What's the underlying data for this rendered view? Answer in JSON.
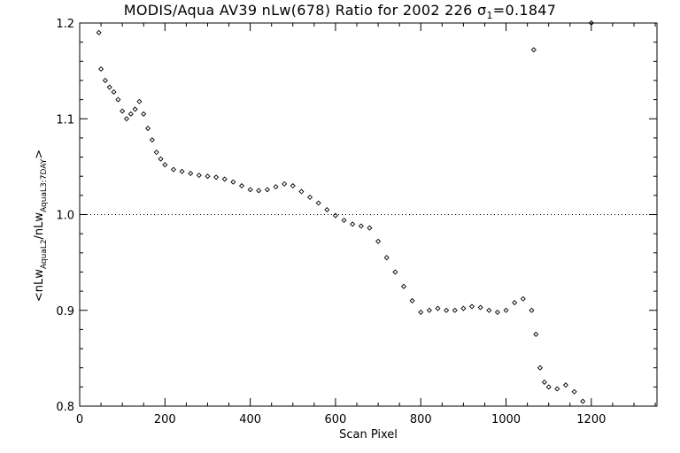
{
  "chart_data": {
    "type": "scatter",
    "title": {
      "prefix": "MODIS/Aqua AV39 nLw(678) Ratio for 2002 226 σ",
      "subscript": "1",
      "suffix": "=0.1847"
    },
    "xlabel": "Scan Pixel",
    "ylabel": {
      "prefix": "<nLw",
      "sub1": "AquaL2",
      "middle": "/nLw",
      "sub2": "AquaL3:7DAY",
      "suffix": ">"
    },
    "xlim": [
      0,
      1354
    ],
    "ylim": [
      0.8,
      1.2
    ],
    "xticks": [
      0,
      200,
      400,
      600,
      800,
      1000,
      1200
    ],
    "xtick_labels": [
      "0",
      "200",
      "400",
      "600",
      "800",
      "1000",
      "1200"
    ],
    "yticks": [
      0.8,
      0.9,
      1.0,
      1.1,
      1.2
    ],
    "ytick_labels": [
      "0.8",
      "0.9",
      "1.0",
      "1.1",
      "1.2"
    ],
    "reference_line": {
      "y": 1.0,
      "style": "dotted"
    },
    "grid": false,
    "marker": "diamond",
    "series": [
      {
        "values": [
          {
            "x": 45,
            "y": 1.19
          },
          {
            "x": 50,
            "y": 1.152
          },
          {
            "x": 60,
            "y": 1.14
          },
          {
            "x": 70,
            "y": 1.133
          },
          {
            "x": 80,
            "y": 1.128
          },
          {
            "x": 90,
            "y": 1.12
          },
          {
            "x": 100,
            "y": 1.108
          },
          {
            "x": 110,
            "y": 1.1
          },
          {
            "x": 120,
            "y": 1.105
          },
          {
            "x": 130,
            "y": 1.11
          },
          {
            "x": 140,
            "y": 1.118
          },
          {
            "x": 150,
            "y": 1.105
          },
          {
            "x": 160,
            "y": 1.09
          },
          {
            "x": 170,
            "y": 1.078
          },
          {
            "x": 180,
            "y": 1.065
          },
          {
            "x": 190,
            "y": 1.058
          },
          {
            "x": 200,
            "y": 1.052
          },
          {
            "x": 220,
            "y": 1.047
          },
          {
            "x": 240,
            "y": 1.045
          },
          {
            "x": 260,
            "y": 1.043
          },
          {
            "x": 280,
            "y": 1.041
          },
          {
            "x": 300,
            "y": 1.04
          },
          {
            "x": 320,
            "y": 1.039
          },
          {
            "x": 340,
            "y": 1.037
          },
          {
            "x": 360,
            "y": 1.034
          },
          {
            "x": 380,
            "y": 1.03
          },
          {
            "x": 400,
            "y": 1.026
          },
          {
            "x": 420,
            "y": 1.025
          },
          {
            "x": 440,
            "y": 1.026
          },
          {
            "x": 460,
            "y": 1.029
          },
          {
            "x": 480,
            "y": 1.032
          },
          {
            "x": 500,
            "y": 1.03
          },
          {
            "x": 520,
            "y": 1.024
          },
          {
            "x": 540,
            "y": 1.018
          },
          {
            "x": 560,
            "y": 1.012
          },
          {
            "x": 580,
            "y": 1.005
          },
          {
            "x": 600,
            "y": 0.999
          },
          {
            "x": 620,
            "y": 0.994
          },
          {
            "x": 640,
            "y": 0.99
          },
          {
            "x": 660,
            "y": 0.988
          },
          {
            "x": 680,
            "y": 0.986
          },
          {
            "x": 700,
            "y": 0.972
          },
          {
            "x": 720,
            "y": 0.955
          },
          {
            "x": 740,
            "y": 0.94
          },
          {
            "x": 760,
            "y": 0.925
          },
          {
            "x": 780,
            "y": 0.91
          },
          {
            "x": 800,
            "y": 0.898
          },
          {
            "x": 820,
            "y": 0.9
          },
          {
            "x": 840,
            "y": 0.902
          },
          {
            "x": 860,
            "y": 0.9
          },
          {
            "x": 880,
            "y": 0.9
          },
          {
            "x": 900,
            "y": 0.902
          },
          {
            "x": 920,
            "y": 0.904
          },
          {
            "x": 940,
            "y": 0.903
          },
          {
            "x": 960,
            "y": 0.9
          },
          {
            "x": 980,
            "y": 0.898
          },
          {
            "x": 1000,
            "y": 0.9
          },
          {
            "x": 1020,
            "y": 0.908
          },
          {
            "x": 1040,
            "y": 0.912
          },
          {
            "x": 1060,
            "y": 0.9
          },
          {
            "x": 1070,
            "y": 0.875
          },
          {
            "x": 1080,
            "y": 0.84
          },
          {
            "x": 1090,
            "y": 0.825
          },
          {
            "x": 1100,
            "y": 0.82
          },
          {
            "x": 1120,
            "y": 0.818
          },
          {
            "x": 1140,
            "y": 0.822
          },
          {
            "x": 1160,
            "y": 0.815
          },
          {
            "x": 1180,
            "y": 0.805
          },
          {
            "x": 1065,
            "y": 1.172
          },
          {
            "x": 1200,
            "y": 1.2
          }
        ]
      }
    ]
  }
}
